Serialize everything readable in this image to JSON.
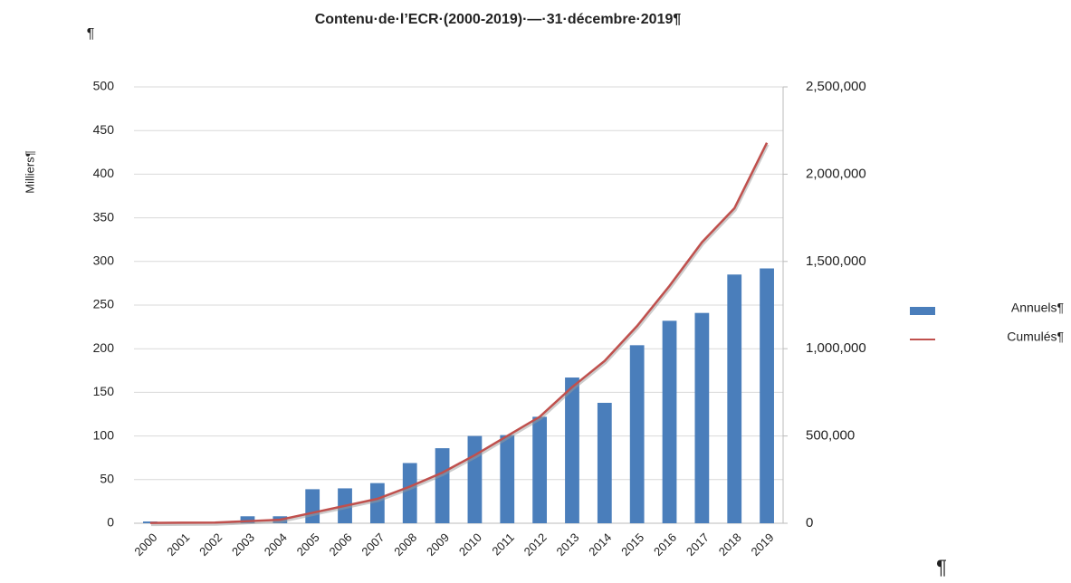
{
  "chart_data": {
    "type": "bar",
    "title": "Contenu·de·l’ECR·(2000-2019)·—·31·décembre·2019¶",
    "y_label": "Milliers¶",
    "pilcrows": [
      "¶",
      "¶"
    ],
    "categories": [
      "2000",
      "2001",
      "2002",
      "2003",
      "2004",
      "2005",
      "2006",
      "2007",
      "2008",
      "2009",
      "2010",
      "2011",
      "2012",
      "2013",
      "2014",
      "2015",
      "2016",
      "2017",
      "2018",
      "2019"
    ],
    "series": [
      {
        "name": "Annuels¶",
        "type": "bar",
        "color": "#4a7ebb",
        "axis": "y",
        "values": [
          2,
          1,
          1,
          8,
          8,
          39,
          40,
          46,
          69,
          86,
          100,
          101,
          122,
          167,
          138,
          204,
          232,
          241,
          285,
          292
        ]
      },
      {
        "name": "Cumulés¶",
        "type": "line",
        "color": "#c0504d",
        "axis": "y2",
        "values": [
          2000,
          3000,
          4000,
          12000,
          20000,
          60000,
          100000,
          140000,
          210000,
          290000,
          390000,
          500000,
          610000,
          780000,
          930000,
          1130000,
          1360000,
          1610000,
          1805000,
          2180000
        ]
      }
    ],
    "ylim": [
      0,
      500
    ],
    "yticks": [
      0,
      50,
      100,
      150,
      200,
      250,
      300,
      350,
      400,
      450,
      500
    ],
    "y2lim": [
      0,
      2500000
    ],
    "y2ticks": [
      0,
      {
        "value": 500000,
        "label": "500,000"
      },
      {
        "value": 1000000,
        "label": "1,000,000"
      },
      {
        "value": 1500000,
        "label": "1,500,000"
      },
      {
        "value": 2000000,
        "label": "2,000,000"
      },
      {
        "value": 2500000,
        "label": "2,500,000"
      }
    ],
    "grid": true,
    "legend": "right"
  }
}
